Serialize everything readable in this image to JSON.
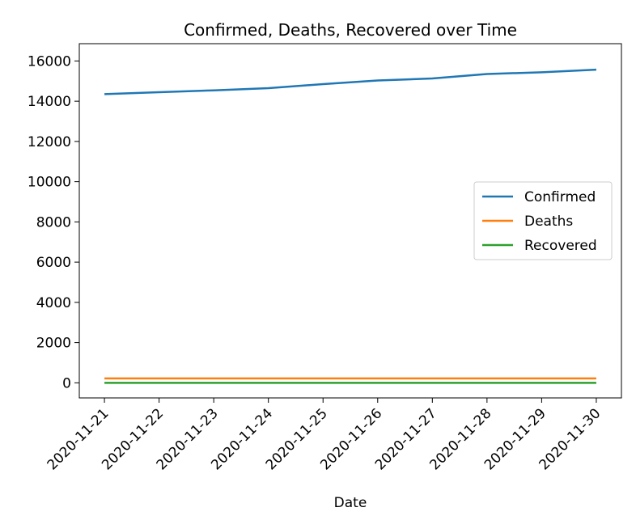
{
  "chart_data": {
    "type": "line",
    "title": "Confirmed, Deaths, Recovered over Time",
    "x_label": "Date",
    "categories": [
      "2020-11-21",
      "2020-11-22",
      "2020-11-23",
      "2020-11-24",
      "2020-11-25",
      "2020-11-26",
      "2020-11-27",
      "2020-11-28",
      "2020-11-29",
      "2020-11-30"
    ],
    "series": [
      {
        "name": "Confirmed",
        "color": "#1f77b4",
        "values": [
          14350,
          14450,
          14540,
          14650,
          14850,
          15030,
          15130,
          15350,
          15440,
          15570
        ]
      },
      {
        "name": "Deaths",
        "color": "#ff7f0e",
        "values": [
          220,
          220,
          220,
          220,
          220,
          220,
          220,
          220,
          220,
          220
        ]
      },
      {
        "name": "Recovered",
        "color": "#2ca02c",
        "values": [
          0,
          0,
          0,
          0,
          0,
          0,
          0,
          0,
          0,
          0
        ]
      }
    ],
    "ylim": [
      -750,
      16860
    ],
    "yticks": [
      0,
      2000,
      4000,
      6000,
      8000,
      10000,
      12000,
      14000,
      16000
    ],
    "legend": "center right"
  }
}
